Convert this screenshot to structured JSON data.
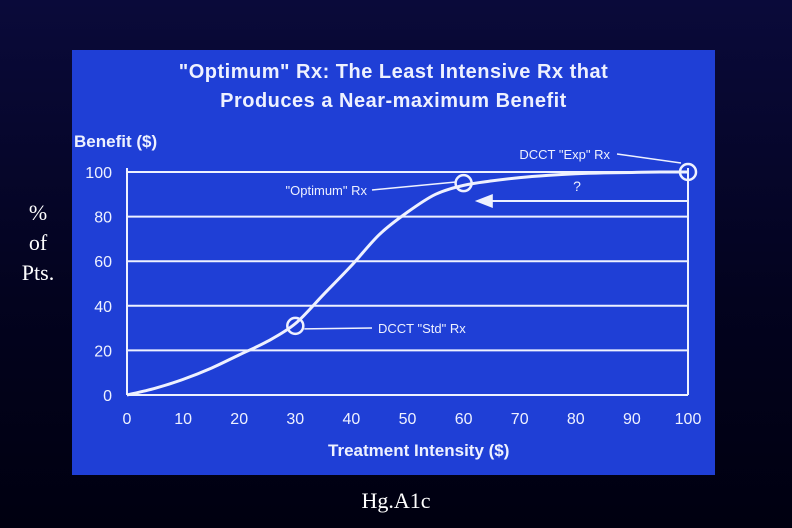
{
  "side_label": [
    "%",
    "of",
    "Pts."
  ],
  "caption": "Hg.A1c",
  "chart_data": {
    "type": "line",
    "title_lines": [
      "\"Optimum\" Rx: The Least Intensive Rx that",
      "Produces a Near-maximum Benefit"
    ],
    "ylabel": "Benefit ($)",
    "xlabel": "Treatment Intensity ($)",
    "xlim": [
      0,
      100
    ],
    "ylim": [
      0,
      100
    ],
    "x_ticks": [
      0,
      10,
      20,
      30,
      40,
      50,
      60,
      70,
      80,
      90,
      100
    ],
    "y_ticks": [
      0,
      20,
      40,
      60,
      80,
      100
    ],
    "grid": "horizontal",
    "series": [
      {
        "x": [
          0,
          5,
          10,
          15,
          20,
          25,
          30,
          35,
          40,
          45,
          50,
          55,
          60,
          65,
          70,
          75,
          80,
          85,
          90,
          95,
          100
        ],
        "y": [
          0,
          3,
          7,
          12,
          18,
          24,
          32,
          45,
          58,
          72,
          82,
          90,
          94,
          96,
          97.5,
          98.5,
          99.2,
          99.6,
          99.8,
          100,
          100
        ]
      }
    ],
    "annotations": [
      {
        "text": "DCCT \"Exp\" Rx",
        "point": [
          100,
          100
        ]
      },
      {
        "text": "\"Optimum\" Rx",
        "point": [
          60,
          95
        ]
      },
      {
        "text": "DCCT \"Std\" Rx",
        "point": [
          30,
          31
        ]
      },
      {
        "text": "?",
        "arrow_from": [
          100,
          87
        ],
        "arrow_to": [
          62,
          87
        ]
      }
    ]
  },
  "colors": {
    "slide_bg": "#1f3fd6",
    "ink": "#eef1ff",
    "page_bg": "#05052a"
  }
}
